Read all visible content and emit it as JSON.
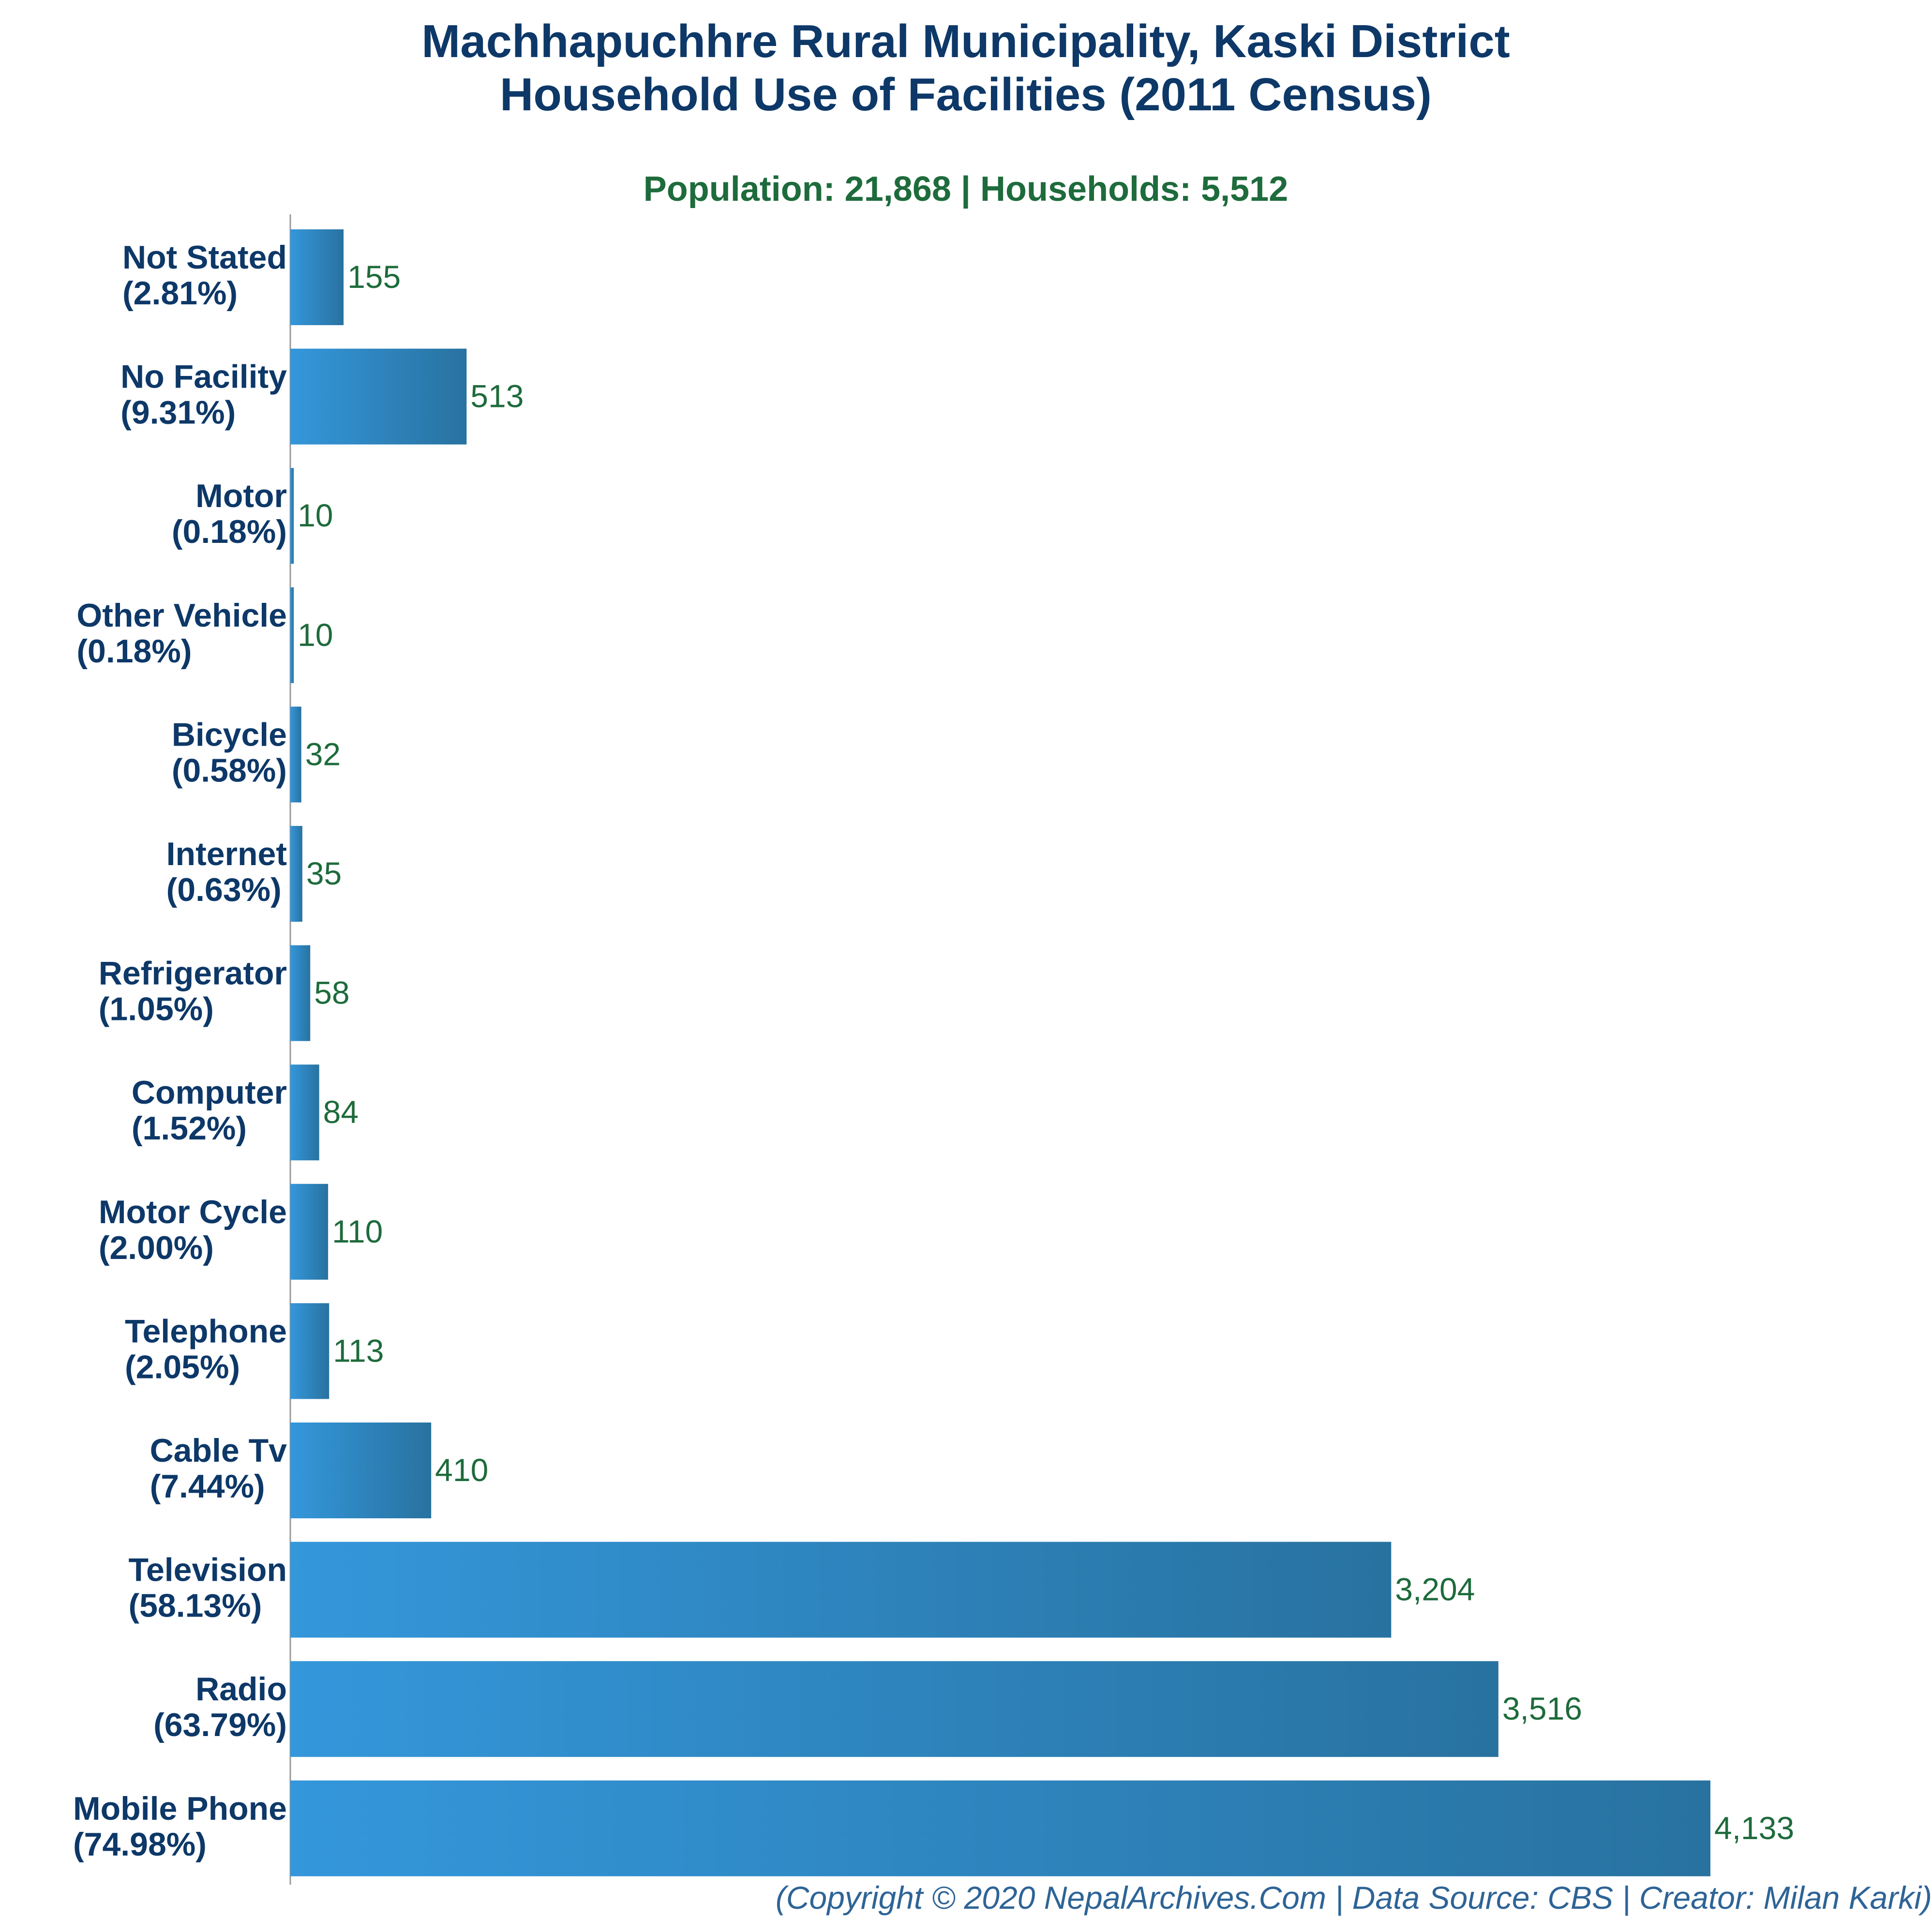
{
  "chart_data": {
    "type": "bar",
    "orientation": "horizontal",
    "title_line1": "Machhapuchhre Rural Municipality, Kaski District",
    "title_line2": "Household Use of Facilities (2011 Census)",
    "subtitle": "Population: 21,868 | Households: 5,512",
    "footer": "(Copyright © 2020 NepalArchives.Com | Data Source: CBS | Creator: Milan Karki)",
    "xlim": [
      0,
      4133
    ],
    "grid": false,
    "bars": [
      {
        "label": "Not Stated",
        "percent": "(2.81%)",
        "value": 155,
        "value_label": "155"
      },
      {
        "label": "No Facility",
        "percent": "(9.31%)",
        "value": 513,
        "value_label": "513"
      },
      {
        "label": "Motor",
        "percent": "(0.18%)",
        "value": 10,
        "value_label": "10"
      },
      {
        "label": "Other Vehicle",
        "percent": "(0.18%)",
        "value": 10,
        "value_label": "10"
      },
      {
        "label": "Bicycle",
        "percent": "(0.58%)",
        "value": 32,
        "value_label": "32"
      },
      {
        "label": "Internet",
        "percent": "(0.63%)",
        "value": 35,
        "value_label": "35"
      },
      {
        "label": "Refrigerator",
        "percent": "(1.05%)",
        "value": 58,
        "value_label": "58"
      },
      {
        "label": "Computer",
        "percent": "(1.52%)",
        "value": 84,
        "value_label": "84"
      },
      {
        "label": "Motor Cycle",
        "percent": "(2.00%)",
        "value": 110,
        "value_label": "110"
      },
      {
        "label": "Telephone",
        "percent": "(2.05%)",
        "value": 113,
        "value_label": "113"
      },
      {
        "label": "Cable Tv",
        "percent": "(7.44%)",
        "value": 410,
        "value_label": "410"
      },
      {
        "label": "Television",
        "percent": "(58.13%)",
        "value": 3204,
        "value_label": "3,204"
      },
      {
        "label": "Radio",
        "percent": "(63.79%)",
        "value": 3516,
        "value_label": "3,516"
      },
      {
        "label": "Mobile Phone",
        "percent": "(74.98%)",
        "value": 4133,
        "value_label": "4,133"
      }
    ]
  },
  "colors": {
    "title": "#0d3868",
    "subtitle": "#1e6b3c",
    "category_label": "#0d3868",
    "value_label": "#1e6b3c",
    "bar_gradient_start": "#3497db",
    "bar_gradient_end": "#2872a0",
    "axis": "#999999",
    "footer": "#2e6496"
  }
}
